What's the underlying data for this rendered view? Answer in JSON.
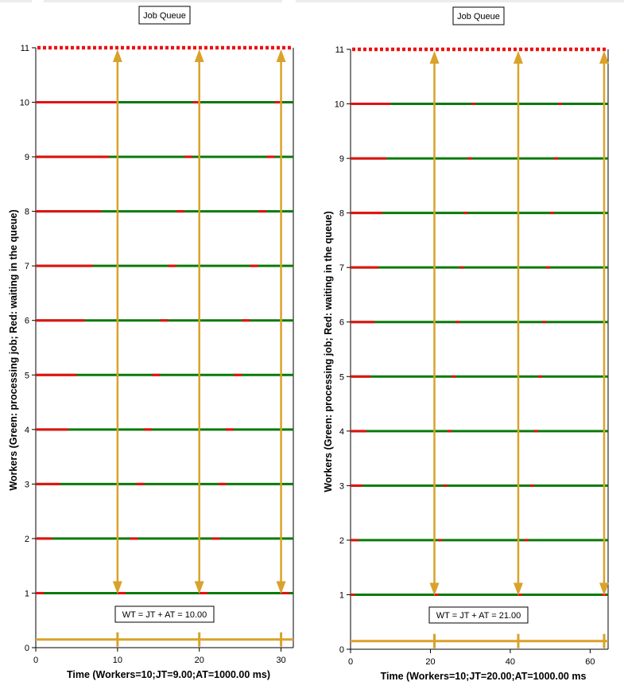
{
  "chart_data": [
    {
      "type": "line",
      "title": "Job Queue",
      "xlabel": "Time (Workers=10;JT=9.00;AT=1000.00 ms)",
      "ylabel": "Workers (Green: processing job; Red: waiting in the queue)",
      "formula": "WT = JT + AT = 10.00",
      "xlim": [
        0,
        31.5
      ],
      "ylim": [
        0,
        11
      ],
      "xticks": [
        "0",
        "10",
        "20",
        "30"
      ],
      "yticks": [
        "0",
        "1",
        "2",
        "3",
        "4",
        "5",
        "6",
        "7",
        "8",
        "9",
        "10",
        "11"
      ],
      "queue_level": 11,
      "arrival_times": [
        10,
        20,
        30
      ],
      "colors": {
        "processing": "#0a7a0a",
        "waiting": "#e31212",
        "arrival": "#d9a22a",
        "queue": "#ee1111"
      },
      "workers": [
        {
          "worker": 1,
          "waiting": [
            [
              0,
              1
            ],
            [
              10,
              11
            ],
            [
              20,
              21
            ],
            [
              30,
              31
            ]
          ]
        },
        {
          "worker": 2,
          "waiting": [
            [
              0,
              2
            ],
            [
              11.5,
              12.5
            ],
            [
              21.5,
              22.5
            ]
          ]
        },
        {
          "worker": 3,
          "waiting": [
            [
              0,
              3
            ],
            [
              12.3,
              13.3
            ],
            [
              22.3,
              23.3
            ]
          ]
        },
        {
          "worker": 4,
          "waiting": [
            [
              0,
              4
            ],
            [
              13.2,
              14.2
            ],
            [
              23.2,
              24.2
            ]
          ]
        },
        {
          "worker": 5,
          "waiting": [
            [
              0,
              5
            ],
            [
              14.2,
              15.2
            ],
            [
              24.2,
              25.2
            ]
          ]
        },
        {
          "worker": 6,
          "waiting": [
            [
              0,
              6
            ],
            [
              15.2,
              16.2
            ],
            [
              25.2,
              26.2
            ]
          ]
        },
        {
          "worker": 7,
          "waiting": [
            [
              0,
              7
            ],
            [
              16.2,
              17.2
            ],
            [
              26.2,
              27.2
            ]
          ]
        },
        {
          "worker": 8,
          "waiting": [
            [
              0,
              8
            ],
            [
              17.2,
              18.2
            ],
            [
              27.2,
              28.2
            ]
          ]
        },
        {
          "worker": 9,
          "waiting": [
            [
              0,
              9
            ],
            [
              18.2,
              19.2
            ],
            [
              28.2,
              29.2
            ]
          ]
        },
        {
          "worker": 10,
          "waiting": [
            [
              0,
              10
            ],
            [
              19.2,
              20.2
            ],
            [
              29.2,
              30.2
            ]
          ]
        }
      ]
    },
    {
      "type": "line",
      "title": "Job Queue",
      "xlabel": "Time (Workers=10;JT=20.00;AT=1000.00 ms",
      "ylabel": "Workers (Green: processing job; Red: waiting in the queue)",
      "formula": "WT = JT + AT = 21.00",
      "xlim": [
        0,
        64.5
      ],
      "ylim": [
        0,
        11
      ],
      "xticks": [
        "0",
        "20",
        "40",
        "60"
      ],
      "yticks": [
        "0",
        "1",
        "2",
        "3",
        "4",
        "5",
        "6",
        "7",
        "8",
        "9",
        "10",
        "11"
      ],
      "queue_level": 11,
      "arrival_times": [
        21,
        42,
        63.5
      ],
      "colors": {
        "processing": "#0a7a0a",
        "waiting": "#e31212",
        "arrival": "#d9a22a",
        "queue": "#ee1111"
      },
      "workers": [
        {
          "worker": 1,
          "waiting": [
            [
              0,
              1
            ],
            [
              21,
              22
            ],
            [
              42,
              43
            ],
            [
              63,
              64
            ]
          ]
        },
        {
          "worker": 2,
          "waiting": [
            [
              0,
              2
            ],
            [
              22,
              23
            ],
            [
              43.5,
              44.5
            ]
          ]
        },
        {
          "worker": 3,
          "waiting": [
            [
              0,
              3
            ],
            [
              23.2,
              24.2
            ],
            [
              45,
              46
            ]
          ]
        },
        {
          "worker": 4,
          "waiting": [
            [
              0,
              4
            ],
            [
              24.3,
              25.3
            ],
            [
              46,
              47
            ]
          ]
        },
        {
          "worker": 5,
          "waiting": [
            [
              0,
              5
            ],
            [
              25.3,
              26.3
            ],
            [
              47,
              48
            ]
          ]
        },
        {
          "worker": 6,
          "waiting": [
            [
              0,
              6
            ],
            [
              26.3,
              27.3
            ],
            [
              48,
              49
            ]
          ]
        },
        {
          "worker": 7,
          "waiting": [
            [
              0,
              7
            ],
            [
              27.3,
              28.3
            ],
            [
              49,
              50
            ]
          ]
        },
        {
          "worker": 8,
          "waiting": [
            [
              0,
              8
            ],
            [
              28.3,
              29.3
            ],
            [
              50,
              51
            ]
          ]
        },
        {
          "worker": 9,
          "waiting": [
            [
              0,
              9
            ],
            [
              29.3,
              30.3
            ],
            [
              51,
              52
            ]
          ]
        },
        {
          "worker": 10,
          "waiting": [
            [
              0,
              10
            ],
            [
              30.3,
              31.3
            ],
            [
              52,
              53
            ]
          ]
        }
      ]
    }
  ]
}
